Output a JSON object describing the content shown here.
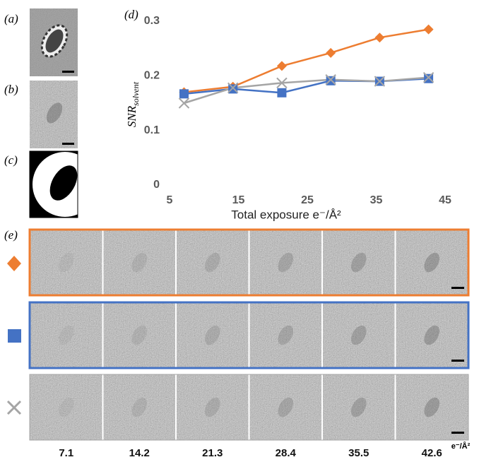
{
  "panel_labels": [
    "(a)",
    "(b)",
    "(c)",
    "(d)",
    "(e)"
  ],
  "unit_label": "e⁻/Å²",
  "chart_data": {
    "type": "line",
    "xlabel": "Total exposure  e⁻/Å²",
    "ylabel": "SNR",
    "ylabel_sub": "solvent",
    "x": [
      7.1,
      14.2,
      21.3,
      28.4,
      35.5,
      42.6
    ],
    "xlim": [
      5,
      45
    ],
    "xticks": [
      5,
      15,
      25,
      35,
      45
    ],
    "ylim": [
      0,
      0.3
    ],
    "yticks": [
      0,
      0.1,
      0.2,
      0.3
    ],
    "series": [
      {
        "color": "#ed7d31",
        "marker": "diamond",
        "values": [
          0.17,
          0.18,
          0.218,
          0.242,
          0.27,
          0.285
        ]
      },
      {
        "color": "#4472c4",
        "marker": "square",
        "values": [
          0.167,
          0.176,
          0.169,
          0.191,
          0.19,
          0.195
        ]
      },
      {
        "color": "#a5a5a5",
        "marker": "cross",
        "values": [
          0.15,
          0.178,
          0.187,
          0.193,
          0.19,
          0.197
        ]
      }
    ]
  }
}
